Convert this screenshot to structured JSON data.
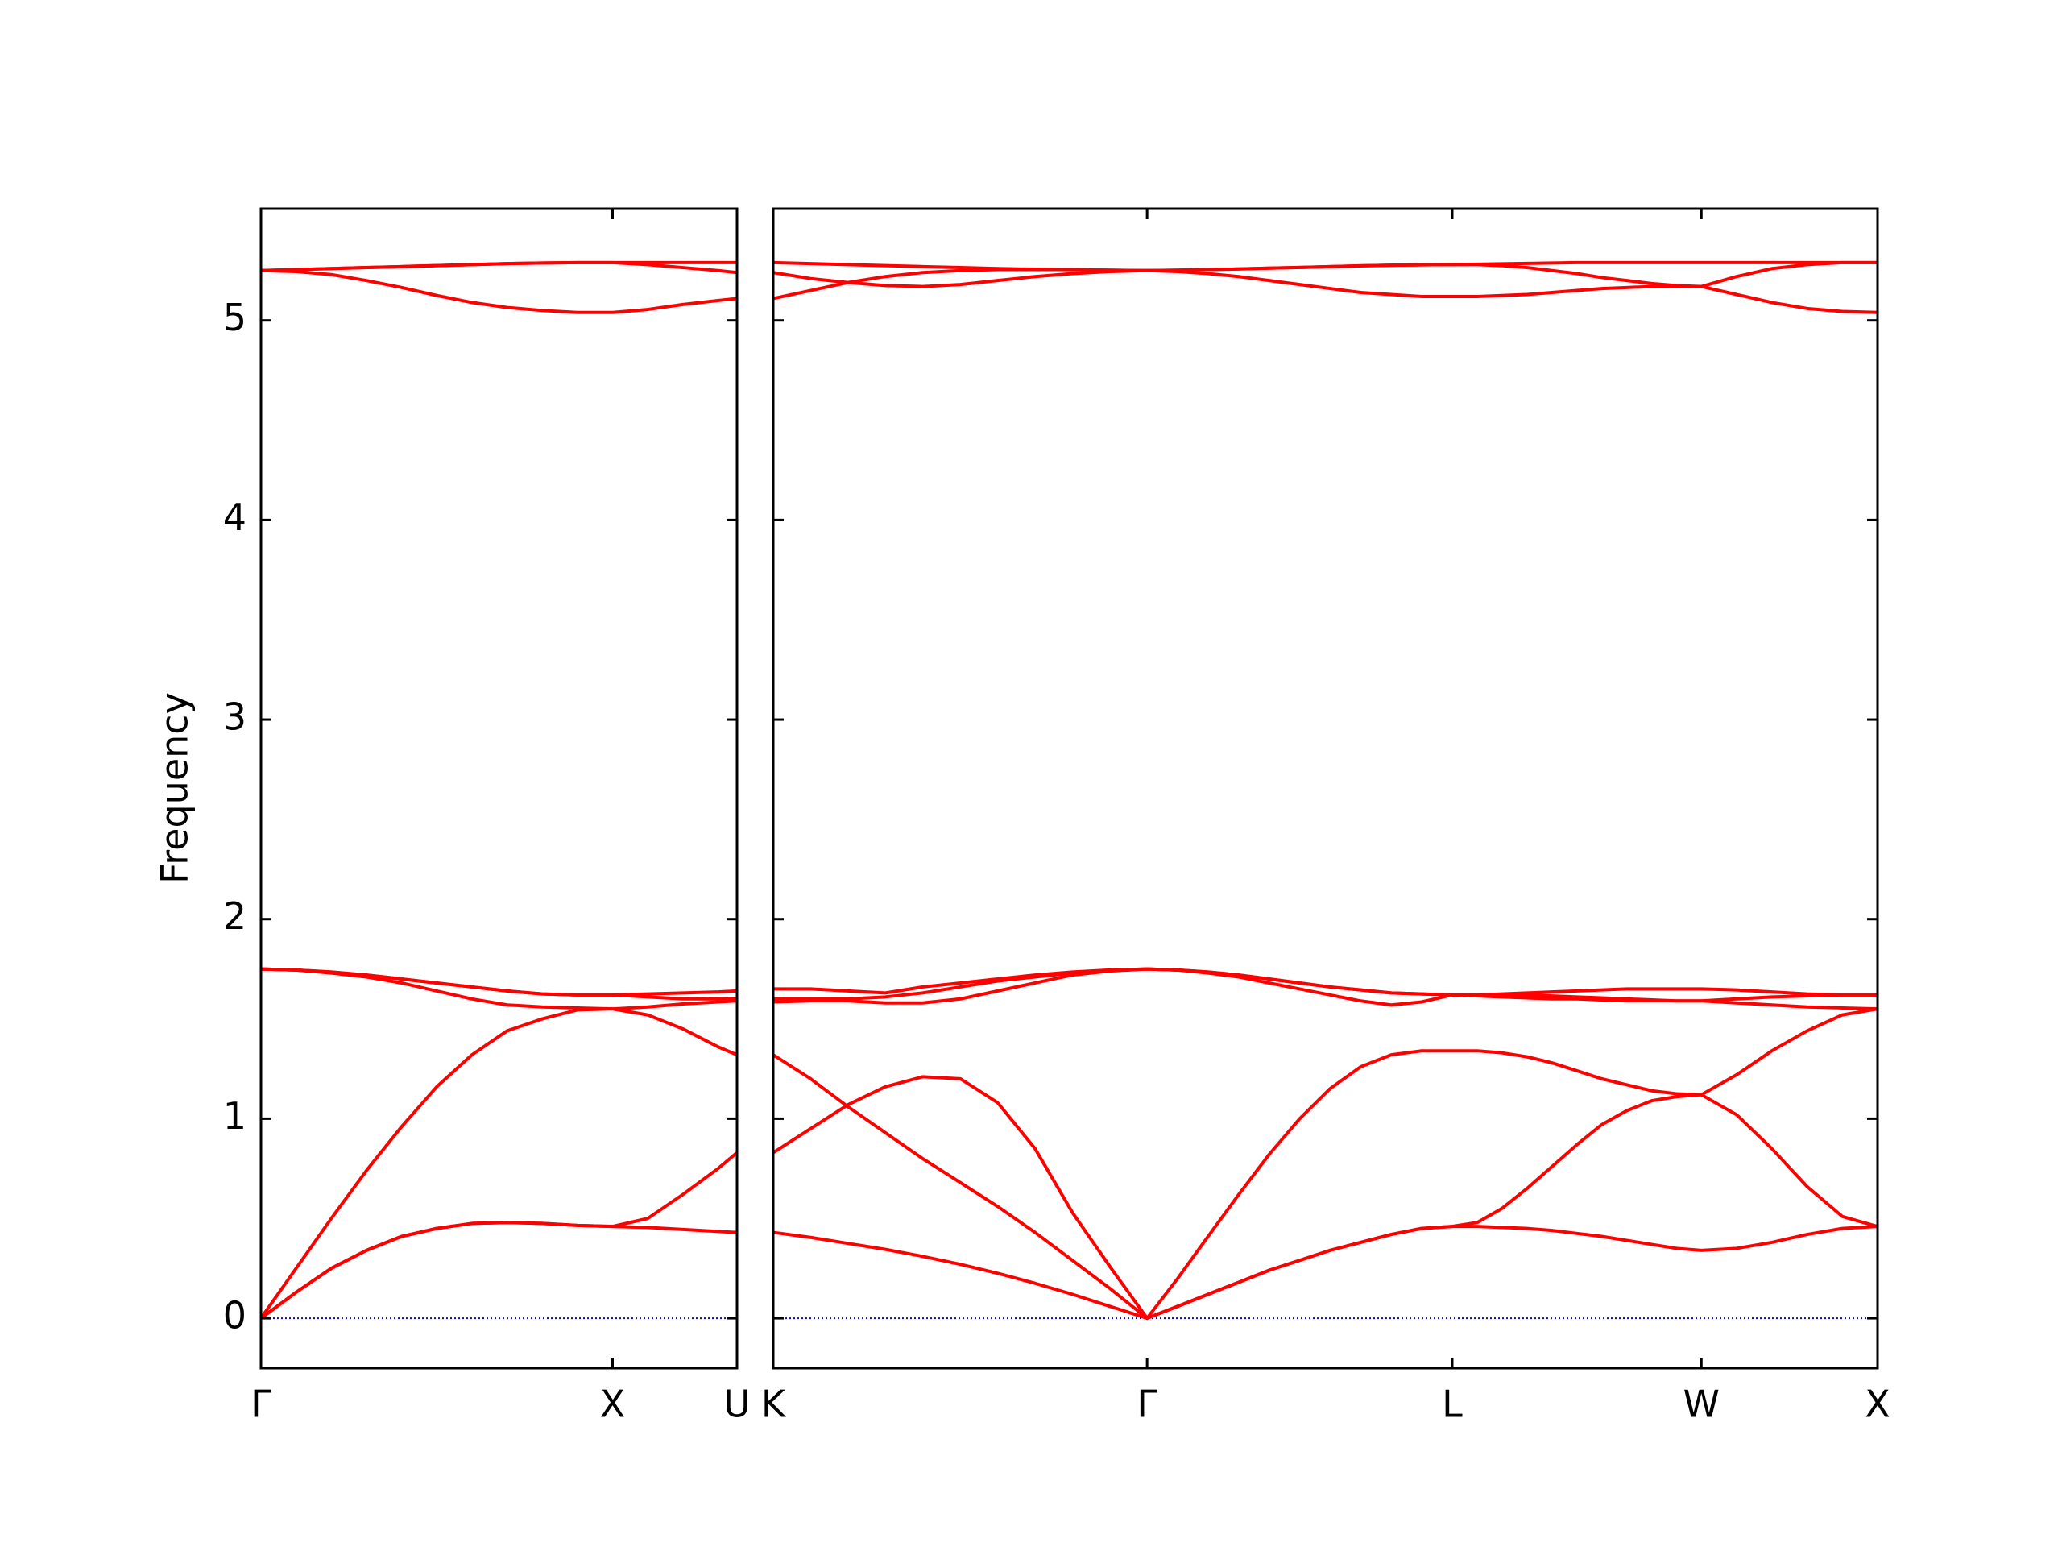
{
  "chart_data": {
    "type": "line",
    "ylabel": "Frequency",
    "color": "red",
    "ylim": [
      -0.25,
      5.56
    ],
    "yticks": [
      0,
      1,
      2,
      3,
      4,
      5
    ],
    "panels": [
      {
        "xlim": [
          0,
          1.354
        ],
        "xticks": [
          {
            "value": 0,
            "label": "Γ"
          },
          {
            "value": 1,
            "label": "X"
          },
          {
            "value": 1.354,
            "label": "U"
          }
        ],
        "x": [
          0,
          0.1,
          0.2,
          0.3,
          0.4,
          0.5,
          0.6,
          0.7,
          0.8,
          0.9,
          1.0,
          1.1,
          1.2,
          1.3,
          1.354
        ],
        "series": [
          {
            "values": [
              0,
              0.13,
              0.25,
              0.34,
              0.41,
              0.45,
              0.475,
              0.48,
              0.475,
              0.465,
              0.46,
              0.455,
              0.445,
              0.435,
              0.43
            ]
          },
          {
            "values": [
              0,
              0.13,
              0.25,
              0.34,
              0.41,
              0.45,
              0.475,
              0.48,
              0.475,
              0.465,
              0.46,
              0.5,
              0.62,
              0.75,
              0.83
            ]
          },
          {
            "values": [
              0,
              0.25,
              0.5,
              0.74,
              0.96,
              1.16,
              1.32,
              1.44,
              1.5,
              1.545,
              1.55,
              1.52,
              1.45,
              1.36,
              1.32
            ]
          },
          {
            "values": [
              1.75,
              1.745,
              1.73,
              1.71,
              1.68,
              1.64,
              1.6,
              1.57,
              1.56,
              1.555,
              1.55,
              1.56,
              1.575,
              1.585,
              1.59
            ]
          },
          {
            "values": [
              1.75,
              1.745,
              1.735,
              1.72,
              1.7,
              1.68,
              1.66,
              1.64,
              1.625,
              1.62,
              1.62,
              1.61,
              1.6,
              1.6,
              1.6
            ]
          },
          {
            "values": [
              1.75,
              1.745,
              1.735,
              1.72,
              1.7,
              1.68,
              1.66,
              1.64,
              1.625,
              1.62,
              1.62,
              1.625,
              1.63,
              1.635,
              1.64
            ]
          },
          {
            "values": [
              5.25,
              5.245,
              5.23,
              5.2,
              5.165,
              5.125,
              5.09,
              5.065,
              5.05,
              5.04,
              5.04,
              5.055,
              5.08,
              5.1,
              5.11
            ]
          },
          {
            "values": [
              5.25,
              5.255,
              5.26,
              5.265,
              5.27,
              5.275,
              5.28,
              5.285,
              5.288,
              5.29,
              5.29,
              5.28,
              5.265,
              5.25,
              5.24
            ]
          },
          {
            "values": [
              5.25,
              5.255,
              5.26,
              5.265,
              5.27,
              5.275,
              5.28,
              5.285,
              5.288,
              5.29,
              5.29,
              5.29,
              5.29,
              5.29,
              5.29
            ]
          }
        ]
      },
      {
        "xlim": [
          1.354,
          4.488
        ],
        "xticks": [
          {
            "value": 1.354,
            "label": "K"
          },
          {
            "value": 2.415,
            "label": "Γ"
          },
          {
            "value": 3.281,
            "label": "L"
          },
          {
            "value": 3.988,
            "label": "W"
          },
          {
            "value": 4.488,
            "label": "X"
          }
        ],
        "x": [
          1.354,
          1.46,
          1.566,
          1.672,
          1.778,
          1.885,
          1.991,
          2.097,
          2.203,
          2.309,
          2.415,
          2.502,
          2.588,
          2.675,
          2.761,
          2.848,
          2.934,
          3.021,
          3.108,
          3.194,
          3.281,
          3.352,
          3.422,
          3.493,
          3.564,
          3.635,
          3.705,
          3.776,
          3.847,
          3.917,
          3.988,
          4.088,
          4.188,
          4.288,
          4.388,
          4.488
        ],
        "series": [
          {
            "values": [
              0.43,
              0.405,
              0.375,
              0.345,
              0.31,
              0.27,
              0.225,
              0.175,
              0.12,
              0.06,
              0,
              0.06,
              0.12,
              0.18,
              0.24,
              0.29,
              0.34,
              0.38,
              0.42,
              0.45,
              0.46,
              0.46,
              0.455,
              0.45,
              0.44,
              0.425,
              0.41,
              0.39,
              0.37,
              0.35,
              0.34,
              0.35,
              0.38,
              0.42,
              0.45,
              0.46
            ]
          },
          {
            "values": [
              0.83,
              0.95,
              1.07,
              1.16,
              1.21,
              1.2,
              1.08,
              0.85,
              0.53,
              0.26,
              0,
              0.06,
              0.12,
              0.18,
              0.24,
              0.29,
              0.34,
              0.38,
              0.42,
              0.45,
              0.46,
              0.48,
              0.55,
              0.65,
              0.76,
              0.87,
              0.97,
              1.04,
              1.09,
              1.11,
              1.12,
              1.02,
              0.85,
              0.66,
              0.51,
              0.46
            ]
          },
          {
            "values": [
              1.32,
              1.2,
              1.06,
              0.93,
              0.8,
              0.68,
              0.56,
              0.43,
              0.29,
              0.15,
              0,
              0.2,
              0.41,
              0.62,
              0.82,
              1.0,
              1.15,
              1.26,
              1.32,
              1.34,
              1.34,
              1.34,
              1.33,
              1.31,
              1.28,
              1.24,
              1.2,
              1.17,
              1.14,
              1.125,
              1.12,
              1.22,
              1.34,
              1.44,
              1.52,
              1.55
            ]
          },
          {
            "values": [
              1.585,
              1.59,
              1.59,
              1.58,
              1.58,
              1.6,
              1.64,
              1.68,
              1.72,
              1.74,
              1.75,
              1.745,
              1.73,
              1.71,
              1.68,
              1.65,
              1.62,
              1.59,
              1.57,
              1.585,
              1.62,
              1.615,
              1.61,
              1.605,
              1.6,
              1.6,
              1.595,
              1.59,
              1.59,
              1.59,
              1.59,
              1.58,
              1.57,
              1.56,
              1.555,
              1.55
            ]
          },
          {
            "values": [
              1.6,
              1.6,
              1.6,
              1.61,
              1.63,
              1.66,
              1.69,
              1.71,
              1.73,
              1.745,
              1.75,
              1.745,
              1.735,
              1.72,
              1.7,
              1.68,
              1.66,
              1.645,
              1.63,
              1.625,
              1.62,
              1.62,
              1.62,
              1.62,
              1.615,
              1.61,
              1.605,
              1.6,
              1.595,
              1.59,
              1.59,
              1.6,
              1.61,
              1.615,
              1.62,
              1.62
            ]
          },
          {
            "values": [
              1.65,
              1.65,
              1.64,
              1.63,
              1.66,
              1.68,
              1.7,
              1.72,
              1.735,
              1.745,
              1.75,
              1.745,
              1.735,
              1.72,
              1.7,
              1.68,
              1.66,
              1.645,
              1.63,
              1.625,
              1.62,
              1.62,
              1.625,
              1.63,
              1.635,
              1.64,
              1.645,
              1.65,
              1.65,
              1.65,
              1.65,
              1.645,
              1.635,
              1.625,
              1.62,
              1.62
            ]
          },
          {
            "values": [
              5.11,
              5.15,
              5.19,
              5.22,
              5.24,
              5.25,
              5.255,
              5.255,
              5.255,
              5.252,
              5.25,
              5.245,
              5.235,
              5.22,
              5.2,
              5.18,
              5.16,
              5.14,
              5.13,
              5.12,
              5.12,
              5.12,
              5.125,
              5.13,
              5.14,
              5.15,
              5.16,
              5.165,
              5.17,
              5.17,
              5.17,
              5.13,
              5.09,
              5.06,
              5.045,
              5.04
            ]
          },
          {
            "values": [
              5.24,
              5.21,
              5.19,
              5.175,
              5.17,
              5.18,
              5.2,
              5.22,
              5.235,
              5.245,
              5.25,
              5.252,
              5.255,
              5.258,
              5.262,
              5.266,
              5.27,
              5.274,
              5.277,
              5.279,
              5.28,
              5.28,
              5.275,
              5.265,
              5.25,
              5.235,
              5.215,
              5.2,
              5.185,
              5.175,
              5.17,
              5.22,
              5.26,
              5.28,
              5.29,
              5.29
            ]
          },
          {
            "values": [
              5.29,
              5.285,
              5.28,
              5.275,
              5.27,
              5.265,
              5.26,
              5.257,
              5.254,
              5.252,
              5.25,
              5.252,
              5.255,
              5.258,
              5.262,
              5.266,
              5.27,
              5.274,
              5.277,
              5.279,
              5.28,
              5.282,
              5.284,
              5.286,
              5.288,
              5.29,
              5.29,
              5.29,
              5.29,
              5.29,
              5.29,
              5.29,
              5.29,
              5.29,
              5.29,
              5.29
            ]
          }
        ]
      }
    ]
  }
}
